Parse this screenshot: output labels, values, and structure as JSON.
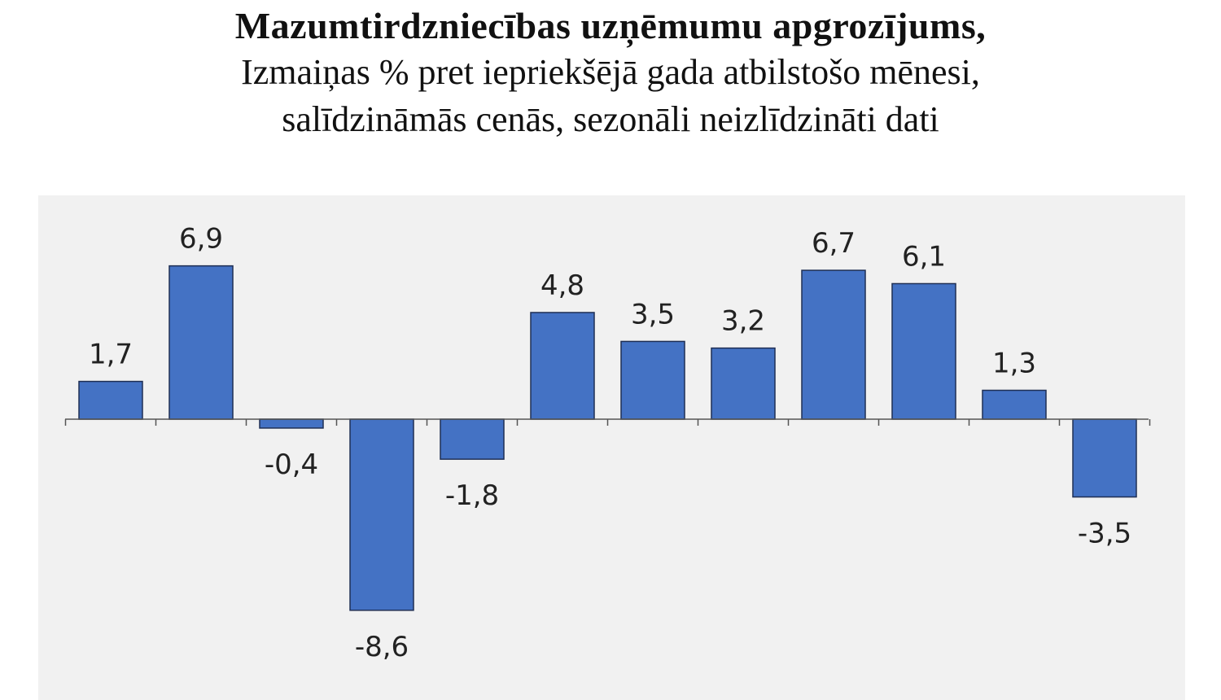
{
  "chart_data": {
    "type": "bar",
    "title": "Mazumtirdzniecības uzņēmumu apgrozījums,",
    "subtitle_lines": [
      "Izmaiņas % pret iepriekšējā gada atbilstošo mēnesi,",
      "salīdzināmās cenās, sezonāli neizlīdzināti dati"
    ],
    "categories": [],
    "values": [
      1.7,
      6.9,
      -0.4,
      -8.6,
      -1.8,
      4.8,
      3.5,
      3.2,
      6.7,
      6.1,
      1.3,
      -3.5
    ],
    "labels": [
      "1,7",
      "6,9",
      "-0,4",
      "-8,6",
      "-1,8",
      "4,8",
      "3,5",
      "3,2",
      "6,7",
      "6,1",
      "1,3",
      "-3,5"
    ],
    "ylim": [
      -10,
      10
    ],
    "grid": false,
    "legend": "none",
    "bar_color": "#4472c4",
    "background_color": "#f1f1f1"
  }
}
